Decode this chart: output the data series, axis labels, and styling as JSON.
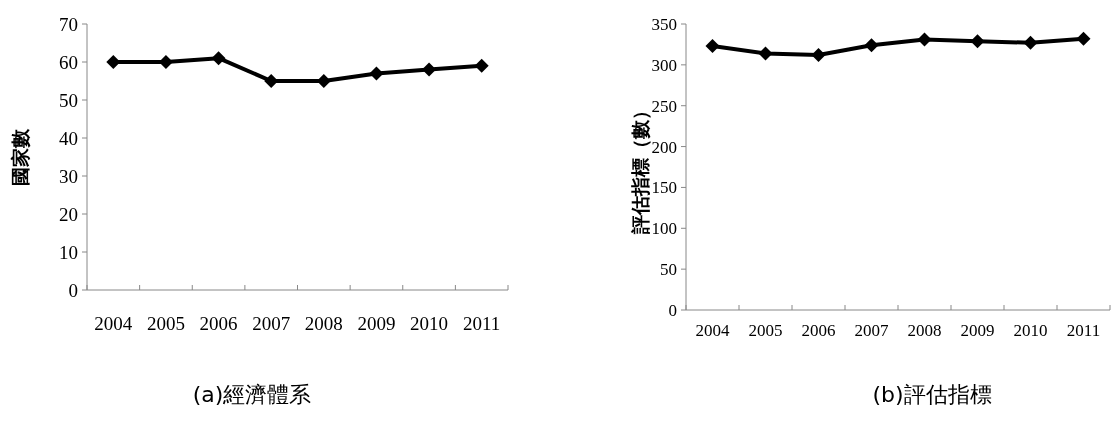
{
  "chart_data": [
    {
      "type": "line",
      "title": "(a)經濟體系",
      "ylabel": "國家數",
      "categories": [
        "2004",
        "2005",
        "2006",
        "2007",
        "2008",
        "2009",
        "2010",
        "2011"
      ],
      "series": [
        {
          "color": "#000000",
          "values": [
            60,
            60,
            61,
            55,
            55,
            57,
            58,
            59
          ]
        }
      ],
      "ylim": [
        0,
        70
      ],
      "yticks": [
        0,
        10,
        20,
        30,
        40,
        50,
        60,
        70
      ],
      "grid": false,
      "marker": "diamond",
      "line_style": "solid"
    },
    {
      "type": "line",
      "title": "(b)評估指標",
      "ylabel": "評估指標（數）",
      "categories": [
        "2004",
        "2005",
        "2006",
        "2007",
        "2008",
        "2009",
        "2010",
        "2011"
      ],
      "series": [
        {
          "color": "#000000",
          "values": [
            323,
            314,
            312,
            324,
            331,
            329,
            327,
            332
          ]
        }
      ],
      "ylim": [
        0,
        350
      ],
      "yticks": [
        0,
        50,
        100,
        150,
        200,
        250,
        300,
        350
      ],
      "grid": false,
      "marker": "diamond",
      "line_style": "solid"
    }
  ]
}
